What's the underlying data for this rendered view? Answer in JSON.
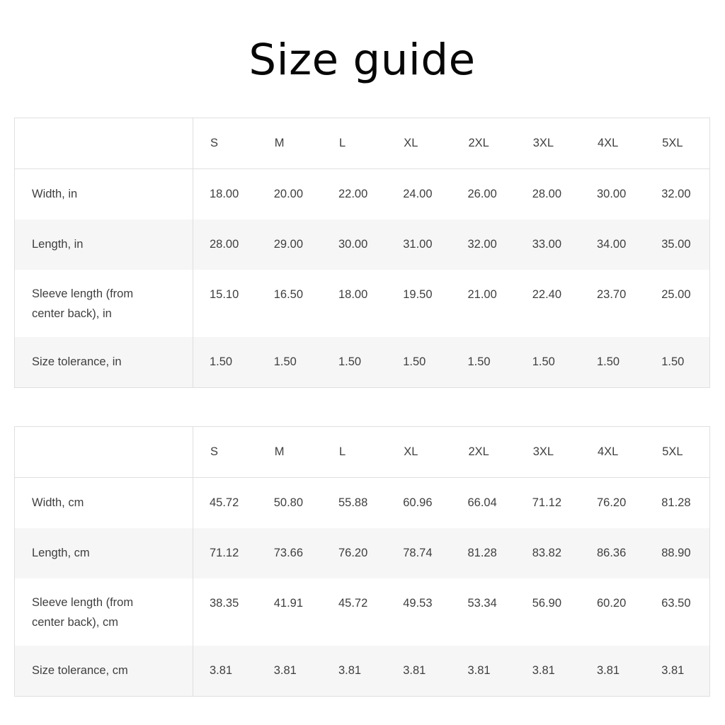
{
  "page": {
    "title": "Size guide"
  },
  "colors": {
    "background": "#ffffff",
    "title_text": "#070707",
    "cell_text": "#3f3f3f",
    "border": "#dfdfdf",
    "row_alternate": "#f6f6f6"
  },
  "tables": [
    {
      "columns": [
        "S",
        "M",
        "L",
        "XL",
        "2XL",
        "3XL",
        "4XL",
        "5XL"
      ],
      "rows": [
        {
          "label": "Width, in",
          "values": [
            "18.00",
            "20.00",
            "22.00",
            "24.00",
            "26.00",
            "28.00",
            "30.00",
            "32.00"
          ]
        },
        {
          "label": "Length, in",
          "values": [
            "28.00",
            "29.00",
            "30.00",
            "31.00",
            "32.00",
            "33.00",
            "34.00",
            "35.00"
          ]
        },
        {
          "label": "Sleeve length (from\ncenter back), in",
          "values": [
            "15.10",
            "16.50",
            "18.00",
            "19.50",
            "21.00",
            "22.40",
            "23.70",
            "25.00"
          ]
        },
        {
          "label": "Size tolerance, in",
          "values": [
            "1.50",
            "1.50",
            "1.50",
            "1.50",
            "1.50",
            "1.50",
            "1.50",
            "1.50"
          ]
        }
      ]
    },
    {
      "columns": [
        "S",
        "M",
        "L",
        "XL",
        "2XL",
        "3XL",
        "4XL",
        "5XL"
      ],
      "rows": [
        {
          "label": "Width, cm",
          "values": [
            "45.72",
            "50.80",
            "55.88",
            "60.96",
            "66.04",
            "71.12",
            "76.20",
            "81.28"
          ]
        },
        {
          "label": "Length, cm",
          "values": [
            "71.12",
            "73.66",
            "76.20",
            "78.74",
            "81.28",
            "83.82",
            "86.36",
            "88.90"
          ]
        },
        {
          "label": "Sleeve length (from\ncenter back), cm",
          "values": [
            "38.35",
            "41.91",
            "45.72",
            "49.53",
            "53.34",
            "56.90",
            "60.20",
            "63.50"
          ]
        },
        {
          "label": "Size tolerance, cm",
          "values": [
            "3.81",
            "3.81",
            "3.81",
            "3.81",
            "3.81",
            "3.81",
            "3.81",
            "3.81"
          ]
        }
      ]
    }
  ]
}
